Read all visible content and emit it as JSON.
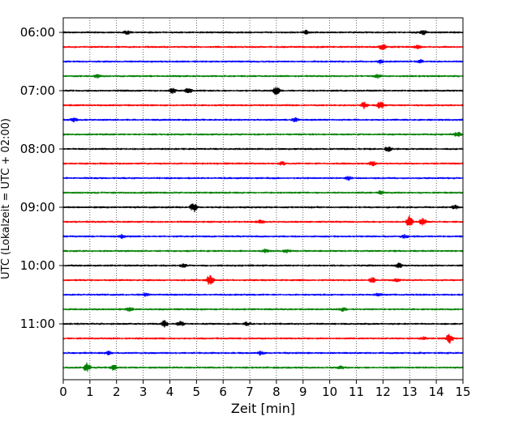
{
  "chart_data": {
    "type": "line",
    "title": "",
    "xlabel": "Zeit  [min]",
    "ylabel": "UTC (Lokalzeit = UTC + 02:00)",
    "xlim": [
      0,
      15
    ],
    "x_ticks": [
      0,
      1,
      2,
      3,
      4,
      5,
      6,
      7,
      8,
      9,
      10,
      11,
      12,
      13,
      14,
      15
    ],
    "y_ticks": [
      "06:00",
      "07:00",
      "08:00",
      "09:00",
      "10:00",
      "11:00"
    ],
    "grid": "vertical dotted at each minute",
    "colors_cycle": [
      "#000000",
      "#ff0000",
      "#0000ff",
      "#008000"
    ],
    "traces": [
      {
        "start": "06:00",
        "color": "#000000",
        "events": [
          [
            2.4,
            2
          ],
          [
            9.1,
            2
          ],
          [
            13.5,
            3
          ]
        ]
      },
      {
        "start": "06:15",
        "color": "#ff0000",
        "events": [
          [
            12.0,
            4
          ],
          [
            13.3,
            2
          ]
        ]
      },
      {
        "start": "06:30",
        "color": "#0000ff",
        "events": [
          [
            11.9,
            2
          ],
          [
            13.4,
            2
          ]
        ]
      },
      {
        "start": "06:45",
        "color": "#008000",
        "events": [
          [
            1.3,
            2
          ],
          [
            11.8,
            2
          ]
        ]
      },
      {
        "start": "07:00",
        "color": "#000000",
        "events": [
          [
            4.1,
            3
          ],
          [
            4.7,
            3
          ],
          [
            8.0,
            5
          ]
        ]
      },
      {
        "start": "07:15",
        "color": "#ff0000",
        "events": [
          [
            11.3,
            4
          ],
          [
            11.9,
            5
          ]
        ]
      },
      {
        "start": "07:30",
        "color": "#0000ff",
        "events": [
          [
            0.4,
            2
          ],
          [
            8.7,
            2
          ]
        ]
      },
      {
        "start": "07:45",
        "color": "#008000",
        "events": [
          [
            14.8,
            3
          ]
        ]
      },
      {
        "start": "08:00",
        "color": "#000000",
        "events": [
          [
            12.2,
            3
          ]
        ]
      },
      {
        "start": "08:15",
        "color": "#ff0000",
        "events": [
          [
            11.6,
            3
          ],
          [
            8.2,
            2
          ]
        ]
      },
      {
        "start": "08:30",
        "color": "#0000ff",
        "events": [
          [
            10.7,
            2
          ]
        ]
      },
      {
        "start": "08:45",
        "color": "#008000",
        "events": [
          [
            11.9,
            2
          ]
        ]
      },
      {
        "start": "09:00",
        "color": "#000000",
        "events": [
          [
            4.9,
            6
          ],
          [
            14.7,
            2
          ]
        ]
      },
      {
        "start": "09:15",
        "color": "#ff0000",
        "events": [
          [
            13.0,
            7
          ],
          [
            13.5,
            5
          ],
          [
            7.4,
            2
          ]
        ]
      },
      {
        "start": "09:30",
        "color": "#0000ff",
        "events": [
          [
            2.2,
            2
          ],
          [
            12.8,
            2
          ]
        ]
      },
      {
        "start": "09:45",
        "color": "#008000",
        "events": [
          [
            7.6,
            2
          ],
          [
            8.4,
            2
          ]
        ]
      },
      {
        "start": "10:00",
        "color": "#000000",
        "events": [
          [
            12.6,
            3
          ],
          [
            4.5,
            2
          ]
        ]
      },
      {
        "start": "10:15",
        "color": "#ff0000",
        "events": [
          [
            5.5,
            7
          ],
          [
            11.6,
            3
          ],
          [
            12.5,
            2
          ]
        ]
      },
      {
        "start": "10:30",
        "color": "#0000ff",
        "events": [
          [
            3.1,
            2
          ],
          [
            11.8,
            2
          ]
        ]
      },
      {
        "start": "10:45",
        "color": "#008000",
        "events": [
          [
            2.5,
            2
          ],
          [
            10.5,
            2
          ]
        ]
      },
      {
        "start": "11:00",
        "color": "#000000",
        "events": [
          [
            3.8,
            4
          ],
          [
            4.4,
            3
          ],
          [
            6.9,
            2
          ]
        ]
      },
      {
        "start": "11:15",
        "color": "#ff0000",
        "events": [
          [
            14.5,
            6
          ],
          [
            13.5,
            2
          ]
        ]
      },
      {
        "start": "11:30",
        "color": "#0000ff",
        "events": [
          [
            1.7,
            2
          ],
          [
            7.4,
            2
          ]
        ]
      },
      {
        "start": "11:45",
        "color": "#008000",
        "events": [
          [
            0.9,
            6
          ],
          [
            1.9,
            3
          ],
          [
            10.4,
            2
          ]
        ]
      }
    ]
  }
}
